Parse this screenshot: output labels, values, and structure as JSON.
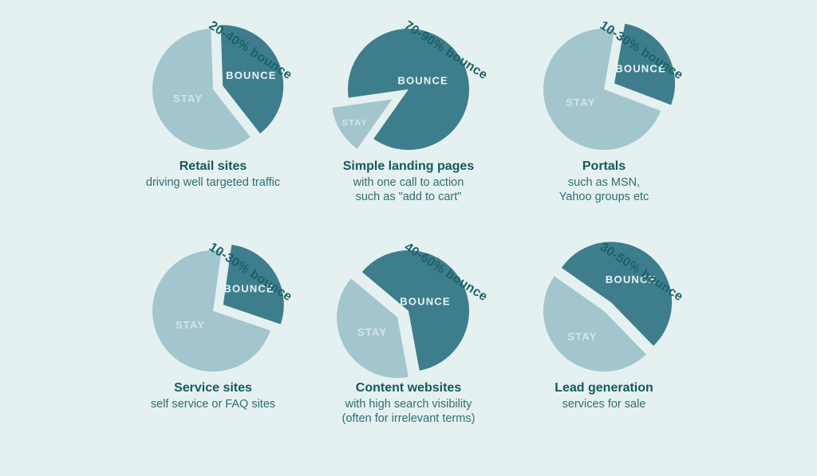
{
  "page": {
    "background": "#e5f1f0"
  },
  "colors": {
    "bounce_slice": "#3e7e8c",
    "stay_slice": "#a3c6ce",
    "bounce_label_text": "#eaf4f5",
    "stay_label_text": "#d3e6ea",
    "title_text": "#13595f",
    "subtitle_text": "#2e6e71",
    "range_label_text": "#1b6167"
  },
  "chart_data": [
    {
      "id": "retail-sites",
      "type": "pie",
      "range_label": "20-40% bounce",
      "title": "Retail sites",
      "subtitle": "driving well targeted traffic",
      "slices": [
        {
          "label": "STAY",
          "value": 60,
          "start_deg": 142,
          "explode": 0,
          "label_r": 0.44,
          "label_size": 13,
          "color": "#a3c6ce",
          "text_color": "#d3e6ea"
        },
        {
          "label": "BOUNCE",
          "value": 40,
          "start_deg": -2,
          "explode": 13,
          "label_r": 0.5,
          "label_size": 13,
          "color": "#3e7e8c",
          "text_color": "#eaf4f5"
        }
      ]
    },
    {
      "id": "simple-landing-pages",
      "type": "pie",
      "range_label": "70-90% bounce",
      "title": "Simple landing pages",
      "subtitle": "with one call to action\nsuch as \"add to cart\"",
      "slices": [
        {
          "label": "STAY",
          "value": 13,
          "start_deg": 215.2,
          "explode": 24,
          "label_r": 0.72,
          "label_size": 11,
          "color": "#a3c6ce",
          "text_color": "#d3e6ea"
        },
        {
          "label": "BOUNCE",
          "value": 87,
          "start_deg": 262,
          "explode": 0,
          "label_r": 0.28,
          "label_size": 13,
          "color": "#3e7e8c",
          "text_color": "#eaf4f5"
        }
      ]
    },
    {
      "id": "portals",
      "type": "pie",
      "range_label": "10-30% bounce",
      "title": "Portals",
      "subtitle": "such as MSN,\nYahoo groups etc",
      "slices": [
        {
          "label": "STAY",
          "value": 72,
          "start_deg": 110.8,
          "explode": 0,
          "label_r": 0.44,
          "label_size": 13,
          "color": "#a3c6ce",
          "text_color": "#d3e6ea"
        },
        {
          "label": "BOUNCE",
          "value": 28,
          "start_deg": 10,
          "explode": 15,
          "label_r": 0.5,
          "label_size": 13,
          "color": "#3e7e8c",
          "text_color": "#eaf4f5"
        }
      ]
    },
    {
      "id": "service-sites",
      "type": "pie",
      "range_label": "10-30% bounce",
      "title": "Service sites",
      "subtitle": "self service or FAQ sites",
      "slices": [
        {
          "label": "STAY",
          "value": 72,
          "start_deg": 108.8,
          "explode": 0,
          "label_r": 0.44,
          "label_size": 13,
          "color": "#a3c6ce",
          "text_color": "#d3e6ea"
        },
        {
          "label": "BOUNCE",
          "value": 28,
          "start_deg": 8,
          "explode": 15,
          "label_r": 0.5,
          "label_size": 13,
          "color": "#3e7e8c",
          "text_color": "#eaf4f5"
        }
      ]
    },
    {
      "id": "content-websites",
      "type": "pie",
      "range_label": "40-60% bounce",
      "title": "Content websites",
      "subtitle": "with high search visibility\n(often for irrelevant terms)",
      "slices": [
        {
          "label": "STAY",
          "value": 39,
          "start_deg": 169.6,
          "explode": 16,
          "label_r": 0.48,
          "label_size": 13,
          "color": "#a3c6ce",
          "text_color": "#d3e6ea"
        },
        {
          "label": "BOUNCE",
          "value": 61,
          "start_deg": 310,
          "explode": 0,
          "label_r": 0.32,
          "label_size": 13,
          "color": "#3e7e8c",
          "text_color": "#eaf4f5"
        }
      ]
    },
    {
      "id": "lead-generation",
      "type": "pie",
      "range_label": "30-50% bounce",
      "title": "Lead generation",
      "subtitle": "services for sale",
      "slices": [
        {
          "label": "STAY",
          "value": 47,
          "start_deg": 135.8,
          "explode": 0,
          "label_r": 0.55,
          "label_size": 13,
          "color": "#a3c6ce",
          "text_color": "#d3e6ea"
        },
        {
          "label": "BOUNCE",
          "value": 53,
          "start_deg": 305,
          "explode": 14,
          "label_r": 0.5,
          "label_size": 13,
          "color": "#3e7e8c",
          "text_color": "#eaf4f5"
        }
      ]
    }
  ]
}
